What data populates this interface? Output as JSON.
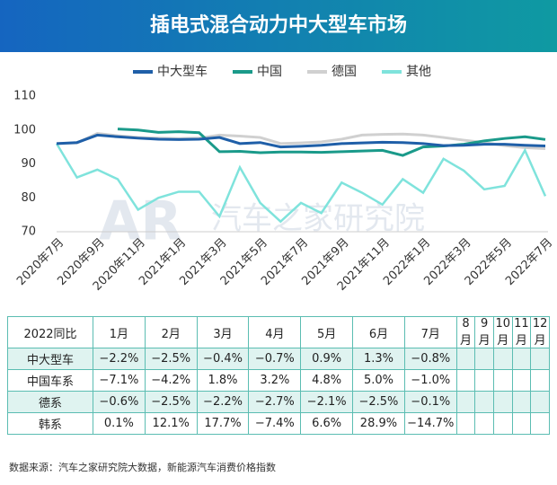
{
  "chart_data": {
    "type": "line",
    "title": "插电式混合动力中大型车市场",
    "categories": [
      "2020年7月",
      null,
      "2020年9月",
      null,
      "2020年11月",
      null,
      "2021年1月",
      null,
      "2021年3月",
      null,
      "2021年5月",
      null,
      "2021年7月",
      null,
      "2021年9月",
      null,
      "2021年11月",
      null,
      "2022年1月",
      null,
      "2022年3月",
      null,
      "2022年5月",
      null,
      "2022年7月"
    ],
    "series": [
      {
        "name": "中大型车",
        "color": "#1f5fa8",
        "values": [
          96,
          96.3,
          98.5,
          98,
          97.6,
          97.3,
          97.2,
          97.3,
          97.8,
          96,
          96.3,
          95,
          95.2,
          95.5,
          96,
          96.2,
          96.4,
          96.3,
          96,
          95.4,
          95.5,
          95.8,
          95.8,
          95.5,
          95.3
        ]
      },
      {
        "name": "中国",
        "color": "#1a9a8a",
        "values": [
          null,
          null,
          null,
          100.3,
          100,
          99.3,
          99.5,
          99.2,
          93.6,
          93.7,
          93.3,
          93.5,
          93.5,
          93.4,
          93.6,
          93.8,
          94,
          92.5,
          95,
          95.3,
          95.8,
          96.8,
          97.5,
          98,
          97.2
        ]
      },
      {
        "name": "德国",
        "color": "#d0d0d0",
        "values": [
          96,
          96.2,
          99,
          98.3,
          97.8,
          97.6,
          97.5,
          97.6,
          98.5,
          98.2,
          97.8,
          96,
          96.2,
          96.5,
          97.3,
          98.5,
          98.7,
          98.8,
          98.5,
          97.8,
          97,
          96.3,
          95.4,
          94.8,
          94.5
        ]
      },
      {
        "name": "其他",
        "color": "#7fe3dc",
        "values": [
          96,
          86,
          88.3,
          85.5,
          76.5,
          80,
          81.8,
          81.8,
          74.5,
          89,
          78.5,
          73,
          78.5,
          75.5,
          84.5,
          81.5,
          78,
          85.5,
          81.5,
          91.5,
          88,
          82.5,
          83.5,
          94,
          80.5
        ]
      }
    ],
    "ylim": [
      70,
      110
    ],
    "yticks": [
      70,
      80,
      90,
      100,
      110
    ],
    "grid": false,
    "watermark": "汽车之家研究院",
    "watermark_logo": "AR"
  },
  "table": {
    "header": [
      "2022同比",
      "1月",
      "2月",
      "3月",
      "4月",
      "5月",
      "6月",
      "7月",
      "8月",
      "9月",
      "10月",
      "11月",
      "12月"
    ],
    "rows": [
      [
        "中大型车",
        "−2.2%",
        "−2.5%",
        "−0.4%",
        "−0.7%",
        "0.9%",
        "1.3%",
        "−0.8%"
      ],
      [
        "中国车系",
        "−7.1%",
        "−4.2%",
        "1.8%",
        "3.2%",
        "4.8%",
        "5.0%",
        "−1.0%"
      ],
      [
        "德系",
        "−0.6%",
        "−2.5%",
        "−2.2%",
        "−2.7%",
        "−2.1%",
        "−2.5%",
        "−0.1%"
      ],
      [
        "韩系",
        "0.1%",
        "12.1%",
        "17.7%",
        "−7.4%",
        "6.6%",
        "28.9%",
        "−14.7%"
      ]
    ]
  },
  "footer": "数据来源：汽车之家研究院大数据，新能源汽车消费价格指数"
}
